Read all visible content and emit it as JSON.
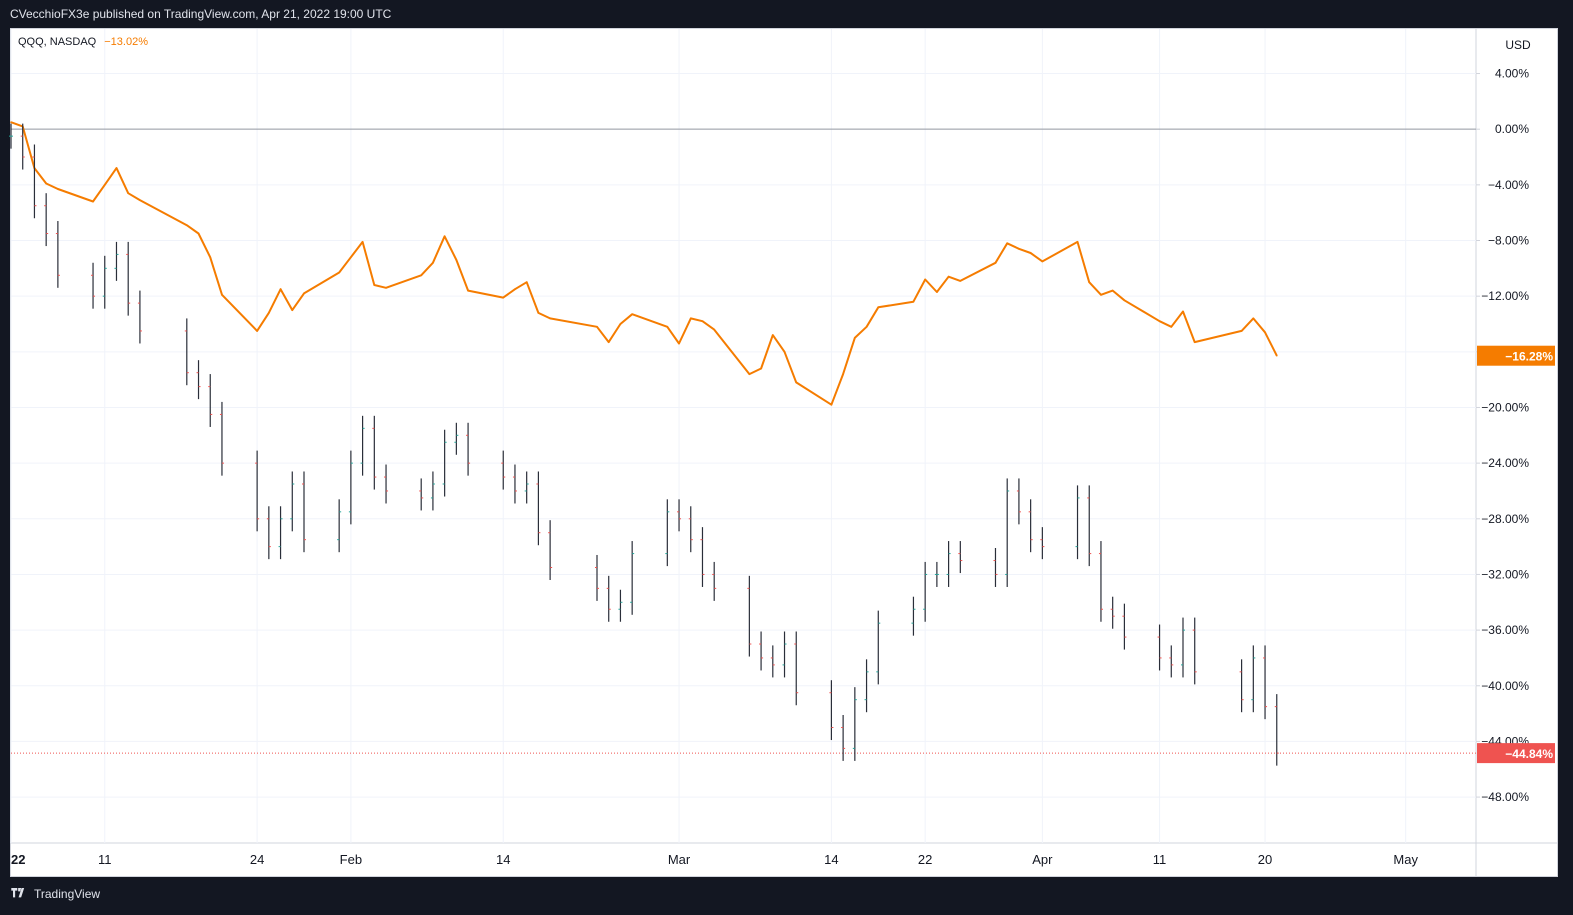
{
  "header": {
    "published": "CVecchioFX3e published on TradingView.com, Apr 21, 2022 19:00 UTC"
  },
  "footer": {
    "brand": "TradingView",
    "logo_icon": "tradingview-logo-icon"
  },
  "chart_data": {
    "type": "line",
    "title": "",
    "legend": {
      "symbol": "QQQ, NASDAQ",
      "change": "−13.02%",
      "change_color": "#f57c00"
    },
    "currency": "USD",
    "xlabel": "",
    "ylabel": "",
    "ylim": [
      -51.3,
      7.2
    ],
    "y_ticks": [
      4,
      0,
      -4,
      -8,
      -12,
      -16,
      -20,
      -24,
      -28,
      -32,
      -36,
      -40,
      -44,
      -48
    ],
    "y_tick_labels": [
      "4.00%",
      "0.00%",
      "−4.00%",
      "−8.00%",
      "−12.00%",
      "−16.00%",
      "−20.00%",
      "−24.00%",
      "−28.00%",
      "−32.00%",
      "−36.00%",
      "−40.00%",
      "−44.00%",
      "−48.00%"
    ],
    "x_ticks": [
      {
        "label": "22",
        "date": "2022-01-03"
      },
      {
        "label": "11",
        "date": "2022-01-11"
      },
      {
        "label": "24",
        "date": "2022-01-24"
      },
      {
        "label": "Feb",
        "date": "2022-02-01"
      },
      {
        "label": "14",
        "date": "2022-02-14"
      },
      {
        "label": "Mar",
        "date": "2022-03-01"
      },
      {
        "label": "14",
        "date": "2022-03-14"
      },
      {
        "label": "22",
        "date": "2022-03-22"
      },
      {
        "label": "Apr",
        "date": "2022-04-01"
      },
      {
        "label": "11",
        "date": "2022-04-11"
      },
      {
        "label": "20",
        "date": "2022-04-20"
      },
      {
        "label": "May",
        "date": "2022-05-02"
      }
    ],
    "x_range": [
      "2022-01-03",
      "2022-05-08"
    ],
    "grid": true,
    "legend_position": "top-left",
    "series": [
      {
        "name": "QQQ, NASDAQ",
        "kind": "line",
        "color": "#f57c00",
        "last_label": "−16.28%",
        "x": [
          "2022-01-03",
          "2022-01-04",
          "2022-01-05",
          "2022-01-06",
          "2022-01-07",
          "2022-01-10",
          "2022-01-11",
          "2022-01-12",
          "2022-01-13",
          "2022-01-14",
          "2022-01-18",
          "2022-01-19",
          "2022-01-20",
          "2022-01-21",
          "2022-01-24",
          "2022-01-25",
          "2022-01-26",
          "2022-01-27",
          "2022-01-28",
          "2022-01-31",
          "2022-02-01",
          "2022-02-02",
          "2022-02-03",
          "2022-02-04",
          "2022-02-07",
          "2022-02-08",
          "2022-02-09",
          "2022-02-10",
          "2022-02-11",
          "2022-02-14",
          "2022-02-15",
          "2022-02-16",
          "2022-02-17",
          "2022-02-18",
          "2022-02-22",
          "2022-02-23",
          "2022-02-24",
          "2022-02-25",
          "2022-02-28",
          "2022-03-01",
          "2022-03-02",
          "2022-03-03",
          "2022-03-04",
          "2022-03-07",
          "2022-03-08",
          "2022-03-09",
          "2022-03-10",
          "2022-03-11",
          "2022-03-14",
          "2022-03-15",
          "2022-03-16",
          "2022-03-17",
          "2022-03-18",
          "2022-03-21",
          "2022-03-22",
          "2022-03-23",
          "2022-03-24",
          "2022-03-25",
          "2022-03-28",
          "2022-03-29",
          "2022-03-30",
          "2022-03-31",
          "2022-04-01",
          "2022-04-04",
          "2022-04-05",
          "2022-04-06",
          "2022-04-07",
          "2022-04-08",
          "2022-04-11",
          "2022-04-12",
          "2022-04-13",
          "2022-04-14",
          "2022-04-18",
          "2022-04-19",
          "2022-04-20",
          "2022-04-21"
        ],
        "values": [
          0.5,
          0.2,
          -2.8,
          -3.9,
          -4.3,
          -5.2,
          -4.0,
          -2.8,
          -4.6,
          -5.1,
          -6.9,
          -7.5,
          -9.2,
          -11.9,
          -14.5,
          -13.2,
          -11.5,
          -13.0,
          -11.8,
          -10.3,
          -9.2,
          -8.1,
          -11.2,
          -11.4,
          -10.5,
          -9.6,
          -7.7,
          -9.4,
          -11.6,
          -12.1,
          -11.5,
          -11.0,
          -13.2,
          -13.6,
          -14.2,
          -15.3,
          -14.0,
          -13.3,
          -14.2,
          -15.4,
          -13.6,
          -13.8,
          -14.4,
          -17.6,
          -17.2,
          -14.8,
          -16.0,
          -18.2,
          -19.8,
          -17.6,
          -15.0,
          -14.2,
          -12.8,
          -12.4,
          -10.8,
          -11.7,
          -10.6,
          -10.9,
          -9.6,
          -8.2,
          -8.6,
          -8.9,
          -9.5,
          -8.1,
          -11.0,
          -11.9,
          -11.6,
          -12.3,
          -13.8,
          -14.2,
          -13.1,
          -15.3,
          -14.5,
          -13.6,
          -14.6,
          -16.28
        ]
      },
      {
        "name": "",
        "kind": "ohlc",
        "color": "#131722",
        "last_label": "−44.84%",
        "last_label_color": "#ef5350",
        "x": [
          "2022-01-03",
          "2022-01-04",
          "2022-01-05",
          "2022-01-06",
          "2022-01-07",
          "2022-01-10",
          "2022-01-11",
          "2022-01-12",
          "2022-01-13",
          "2022-01-14",
          "2022-01-18",
          "2022-01-19",
          "2022-01-20",
          "2022-01-21",
          "2022-01-24",
          "2022-01-25",
          "2022-01-26",
          "2022-01-27",
          "2022-01-28",
          "2022-01-31",
          "2022-02-01",
          "2022-02-02",
          "2022-02-03",
          "2022-02-04",
          "2022-02-07",
          "2022-02-08",
          "2022-02-09",
          "2022-02-10",
          "2022-02-11",
          "2022-02-14",
          "2022-02-15",
          "2022-02-16",
          "2022-02-17",
          "2022-02-18",
          "2022-02-22",
          "2022-02-23",
          "2022-02-24",
          "2022-02-25",
          "2022-02-28",
          "2022-03-01",
          "2022-03-02",
          "2022-03-03",
          "2022-03-04",
          "2022-03-07",
          "2022-03-08",
          "2022-03-09",
          "2022-03-10",
          "2022-03-11",
          "2022-03-14",
          "2022-03-15",
          "2022-03-16",
          "2022-03-17",
          "2022-03-18",
          "2022-03-21",
          "2022-03-22",
          "2022-03-23",
          "2022-03-24",
          "2022-03-25",
          "2022-03-28",
          "2022-03-29",
          "2022-03-30",
          "2022-03-31",
          "2022-04-01",
          "2022-04-04",
          "2022-04-05",
          "2022-04-06",
          "2022-04-07",
          "2022-04-08",
          "2022-04-11",
          "2022-04-12",
          "2022-04-13",
          "2022-04-14",
          "2022-04-18",
          "2022-04-19",
          "2022-04-20",
          "2022-04-21"
        ],
        "values": [
          -0.5,
          -2.0,
          -5.5,
          -7.5,
          -10.5,
          -12.0,
          -10.0,
          -9.0,
          -12.5,
          -14.5,
          -17.5,
          -18.5,
          -20.5,
          -24.0,
          -28.0,
          -30.0,
          -28.0,
          -25.5,
          -29.5,
          -27.5,
          -24.0,
          -21.5,
          -25.0,
          -26.0,
          -26.5,
          -25.5,
          -22.5,
          -22.0,
          -24.0,
          -25.0,
          -26.0,
          -25.5,
          -29.0,
          -31.5,
          -33.0,
          -34.5,
          -34.0,
          -30.5,
          -27.5,
          -28.0,
          -29.5,
          -32.0,
          -33.0,
          -37.0,
          -38.0,
          -38.5,
          -37.0,
          -40.5,
          -43.0,
          -44.5,
          -41.0,
          -39.0,
          -35.5,
          -34.5,
          -32.0,
          -32.0,
          -30.5,
          -31.0,
          -32.0,
          -26.0,
          -27.5,
          -29.5,
          -30.0,
          -26.5,
          -30.5,
          -34.5,
          -35.0,
          -36.5,
          -38.0,
          -38.5,
          -36.0,
          -39.0,
          -41.0,
          -38.0,
          -41.5,
          -44.84
        ]
      }
    ],
    "reference_lines": [
      {
        "value": 0,
        "color": "#9598a1",
        "style": "solid"
      },
      {
        "value": -44.84,
        "color": "#ef5350",
        "style": "dotted"
      }
    ]
  }
}
